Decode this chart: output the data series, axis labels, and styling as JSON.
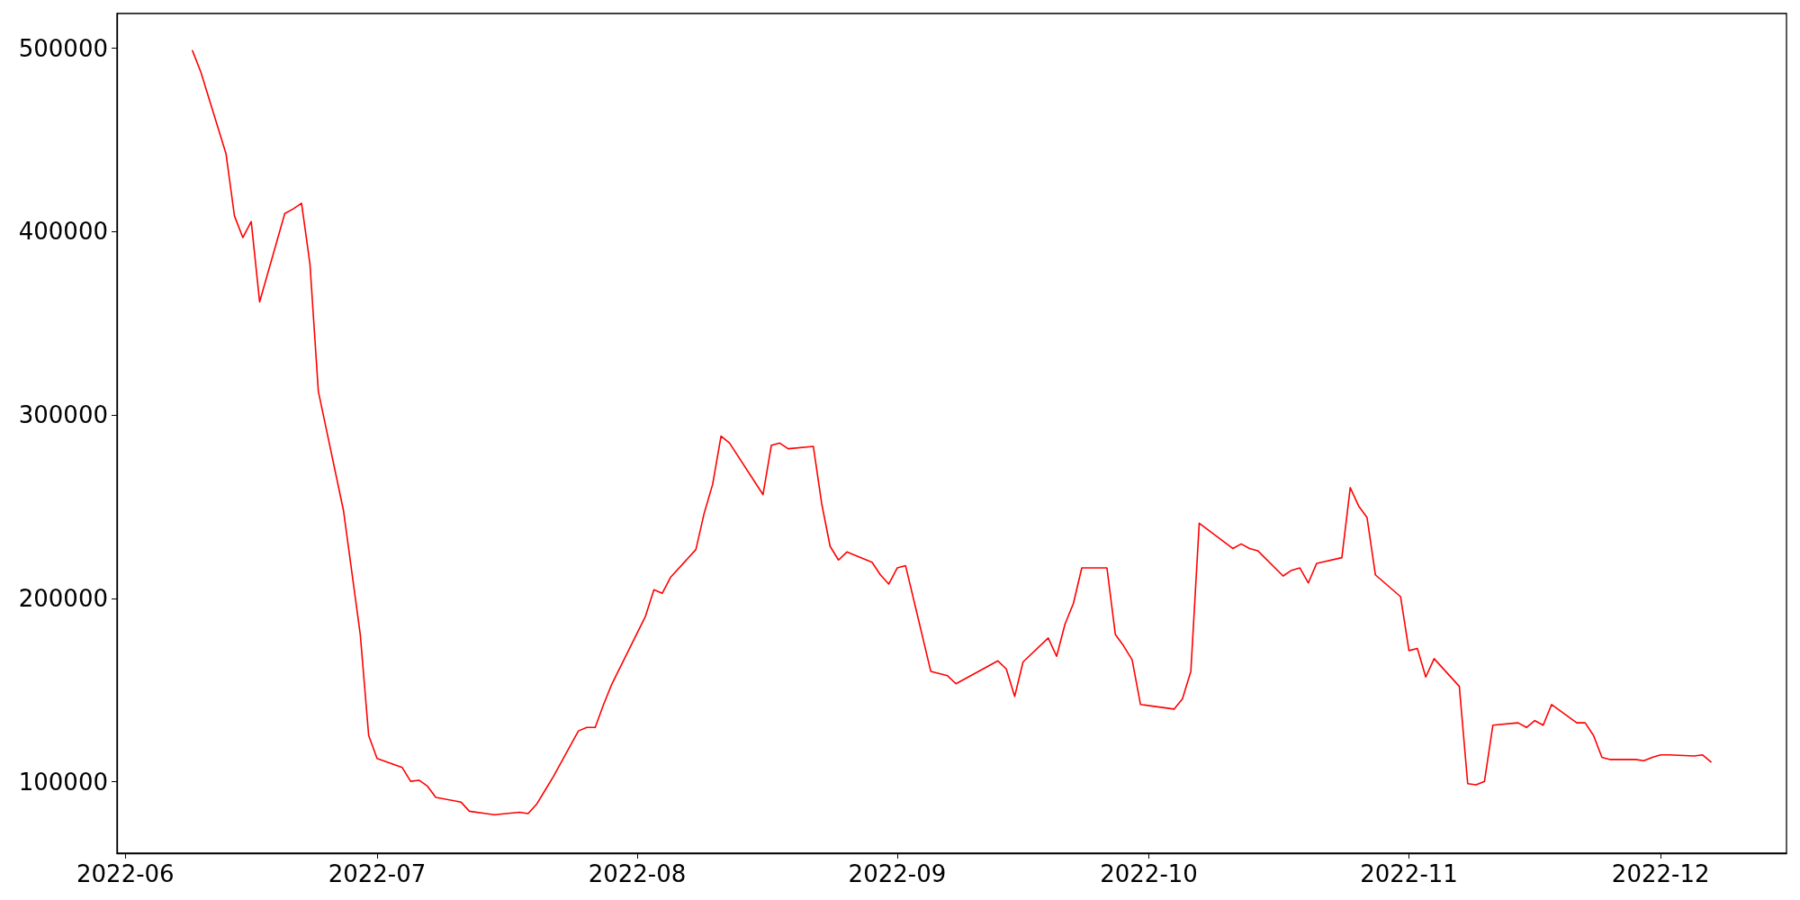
{
  "chart_data": {
    "type": "line",
    "grid": false,
    "marker": "none",
    "line_style": "solid",
    "x": [
      "2022-06-09",
      "2022-06-10",
      "2022-06-13",
      "2022-06-14",
      "2022-06-15",
      "2022-06-16",
      "2022-06-17",
      "2022-06-20",
      "2022-06-21",
      "2022-06-22",
      "2022-06-23",
      "2022-06-24",
      "2022-06-27",
      "2022-06-29",
      "2022-06-30",
      "2022-07-01",
      "2022-07-04",
      "2022-07-05",
      "2022-07-06",
      "2022-07-07",
      "2022-07-08",
      "2022-07-11",
      "2022-07-12",
      "2022-07-14",
      "2022-07-15",
      "2022-07-18",
      "2022-07-19",
      "2022-07-20",
      "2022-07-21",
      "2022-07-22",
      "2022-07-25",
      "2022-07-26",
      "2022-07-27",
      "2022-07-28",
      "2022-07-29",
      "2022-08-02",
      "2022-08-03",
      "2022-08-04",
      "2022-08-05",
      "2022-08-08",
      "2022-08-09",
      "2022-08-10",
      "2022-08-11",
      "2022-08-12",
      "2022-08-16",
      "2022-08-17",
      "2022-08-18",
      "2022-08-19",
      "2022-08-22",
      "2022-08-23",
      "2022-08-24",
      "2022-08-25",
      "2022-08-26",
      "2022-08-29",
      "2022-08-30",
      "2022-08-31",
      "2022-09-01",
      "2022-09-02",
      "2022-09-05",
      "2022-09-07",
      "2022-09-08",
      "2022-09-13",
      "2022-09-14",
      "2022-09-15",
      "2022-09-16",
      "2022-09-19",
      "2022-09-20",
      "2022-09-21",
      "2022-09-22",
      "2022-09-23",
      "2022-09-26",
      "2022-09-27",
      "2022-09-28",
      "2022-09-29",
      "2022-09-30",
      "2022-10-04",
      "2022-10-05",
      "2022-10-06",
      "2022-10-07",
      "2022-10-11",
      "2022-10-12",
      "2022-10-13",
      "2022-10-14",
      "2022-10-17",
      "2022-10-18",
      "2022-10-19",
      "2022-10-20",
      "2022-10-21",
      "2022-10-24",
      "2022-10-25",
      "2022-10-26",
      "2022-10-27",
      "2022-10-28",
      "2022-10-31",
      "2022-11-01",
      "2022-11-02",
      "2022-11-03",
      "2022-11-04",
      "2022-11-07",
      "2022-11-08",
      "2022-11-09",
      "2022-11-10",
      "2022-11-11",
      "2022-11-14",
      "2022-11-15",
      "2022-11-16",
      "2022-11-17",
      "2022-11-18",
      "2022-11-21",
      "2022-11-22",
      "2022-11-23",
      "2022-11-24",
      "2022-11-25",
      "2022-11-28",
      "2022-11-29",
      "2022-11-30",
      "2022-12-01",
      "2022-12-02",
      "2022-12-05",
      "2022-12-06",
      "2022-12-07"
    ],
    "series": [
      {
        "color": "#ff0000",
        "values": [
          498700,
          487000,
          442400,
          408600,
          396800,
          405500,
          361700,
          409900,
          412400,
          415500,
          382400,
          312900,
          247800,
          180200,
          125200,
          112700,
          107700,
          100200,
          100800,
          97600,
          91400,
          88900,
          83900,
          82600,
          82000,
          83300,
          82600,
          87600,
          95100,
          102700,
          127700,
          129600,
          129600,
          142100,
          153400,
          190300,
          204700,
          202800,
          211600,
          226600,
          246600,
          262200,
          288500,
          284800,
          256600,
          283500,
          284700,
          281600,
          282900,
          251600,
          228400,
          220900,
          225300,
          219700,
          212800,
          207800,
          216600,
          217800,
          160200,
          157800,
          153400,
          165900,
          161500,
          146500,
          165300,
          178400,
          168400,
          185900,
          197200,
          216600,
          216600,
          180300,
          174000,
          166500,
          142100,
          139600,
          145200,
          160200,
          241000,
          227200,
          229700,
          227200,
          225900,
          212200,
          215300,
          216600,
          208400,
          219100,
          222200,
          260400,
          250400,
          244100,
          212800,
          200900,
          171500,
          172700,
          157100,
          167100,
          152000,
          98900,
          98300,
          100200,
          130800,
          132100,
          129600,
          133300,
          130800,
          142100,
          132100,
          132100,
          125200,
          113300,
          112100,
          112100,
          111400,
          113300,
          114600,
          114600,
          114000,
          114600,
          110800
        ]
      }
    ],
    "xlim": [
      "2022-05-31",
      "2022-12-16"
    ],
    "xticks": [
      {
        "value": "2022-06-01",
        "label": "2022-06"
      },
      {
        "value": "2022-07-01",
        "label": "2022-07"
      },
      {
        "value": "2022-08-01",
        "label": "2022-08"
      },
      {
        "value": "2022-09-01",
        "label": "2022-09"
      },
      {
        "value": "2022-10-01",
        "label": "2022-10"
      },
      {
        "value": "2022-11-01",
        "label": "2022-11"
      },
      {
        "value": "2022-12-01",
        "label": "2022-12"
      }
    ],
    "ylim": [
      61000,
      519000
    ],
    "yticks": [
      100000,
      200000,
      300000,
      400000,
      500000
    ]
  }
}
